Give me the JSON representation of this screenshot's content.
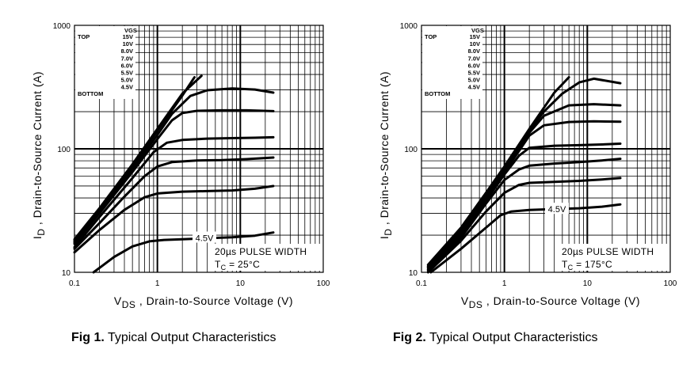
{
  "charts": [
    {
      "caption_num": "Fig 1.",
      "caption_text": "Typical Output Characteristics",
      "note_line1": "20µs PULSE WIDTH",
      "note_t": "T",
      "note_sub": "C",
      "note_rest": " = 25°C",
      "curve_label": "4.5V"
    },
    {
      "caption_num": "Fig 2.",
      "caption_text": "Typical Output Characteristics",
      "note_line1": "20µs PULSE WIDTH",
      "note_t": "T",
      "note_sub": "C",
      "note_rest": " = 175°C",
      "curve_label": "4.5V"
    }
  ],
  "chart_data": [
    {
      "type": "line",
      "title": "Typical Output Characteristics",
      "xlabel": "V DS , Drain-to-Source Voltage (V)",
      "ylabel": "I D , Drain-to-Source Current (A)",
      "xscale": "log",
      "yscale": "log",
      "xlim": [
        0.1,
        100
      ],
      "ylim": [
        10,
        1000
      ],
      "xticks": [
        "0.1",
        "1",
        "10",
        "100"
      ],
      "yticks": [
        "10",
        "100",
        "1000"
      ],
      "grid": true,
      "legend_title": "VGS",
      "legend_top": "TOP",
      "legend_bottom": "BOTTOM",
      "legend_entries": [
        "15V",
        "10V",
        "8.0V",
        "7.0V",
        "6.0V",
        "5.5V",
        "5.0V",
        "4.5V"
      ],
      "annotation": "20µs PULSE WIDTH",
      "condition": "TC = 25°C",
      "series": [
        {
          "vgs": "4.5V",
          "x": [
            0.17,
            0.3,
            0.5,
            0.8,
            1.2,
            2,
            4,
            8,
            15,
            25
          ],
          "y": [
            10.0,
            13.3,
            16.2,
            17.8,
            18.3,
            18.5,
            18.9,
            19.2,
            19.8,
            21
          ]
        },
        {
          "vgs": "5.0V",
          "x": [
            0.1,
            0.2,
            0.4,
            0.7,
            1.0,
            2,
            4,
            8,
            15,
            25
          ],
          "y": [
            14.5,
            22,
            32,
            40.5,
            43.5,
            45,
            45.5,
            46,
            47.5,
            50
          ]
        },
        {
          "vgs": "5.5V",
          "x": [
            0.1,
            0.2,
            0.4,
            0.7,
            1.0,
            1.5,
            3,
            6,
            12,
            25
          ],
          "y": [
            15.5,
            25,
            41,
            60,
            72,
            78,
            80.5,
            81,
            82.5,
            85
          ]
        },
        {
          "vgs": "6.0V",
          "x": [
            0.1,
            0.2,
            0.5,
            0.9,
            1.3,
            2,
            4,
            8,
            15,
            25
          ],
          "y": [
            16,
            28,
            58,
            94,
            112,
            118,
            121,
            122,
            123,
            124
          ]
        },
        {
          "vgs": "7.0V",
          "x": [
            0.1,
            0.2,
            0.5,
            1.0,
            1.5,
            2,
            3,
            6,
            12,
            25
          ],
          "y": [
            17,
            30,
            65,
            120,
            170,
            195,
            203,
            205,
            205,
            202
          ]
        },
        {
          "vgs": "8.0V",
          "x": [
            0.1,
            0.2,
            0.5,
            1.0,
            1.5,
            2.5,
            4,
            8,
            15,
            25
          ],
          "y": [
            17.5,
            31,
            68,
            130,
            192,
            268,
            298,
            308,
            302,
            285
          ]
        },
        {
          "vgs": "10V",
          "x": [
            0.1,
            0.2,
            0.5,
            1.0,
            2.0,
            2.8
          ],
          "y": [
            18,
            32,
            72,
            140,
            270,
            380
          ]
        },
        {
          "vgs": "15V",
          "x": [
            0.1,
            0.2,
            0.5,
            1.0,
            2.0,
            3.4
          ],
          "y": [
            18.5,
            33,
            75,
            145,
            280,
            390
          ]
        }
      ]
    },
    {
      "type": "line",
      "title": "Typical Output Characteristics",
      "xlabel": "V DS , Drain-to-Source Voltage (V)",
      "ylabel": "I D , Drain-to-Source Current (A)",
      "xscale": "log",
      "yscale": "log",
      "xlim": [
        0.1,
        100
      ],
      "ylim": [
        10,
        1000
      ],
      "xticks": [
        "0.1",
        "1",
        "10",
        "100"
      ],
      "yticks": [
        "10",
        "100",
        "1000"
      ],
      "grid": true,
      "legend_title": "VGS",
      "legend_top": "TOP",
      "legend_bottom": "BOTTOM",
      "legend_entries": [
        "15V",
        "10V",
        "8.0V",
        "7.0V",
        "6.0V",
        "5.5V",
        "5.0V",
        "4.5V"
      ],
      "annotation": "20µs PULSE WIDTH",
      "condition": "TC = 175°C",
      "series": [
        {
          "vgs": "4.5V",
          "x": [
            0.13,
            0.3,
            0.6,
            0.9,
            1.2,
            2,
            4,
            8,
            15,
            25
          ],
          "y": [
            10.0,
            15.5,
            23,
            29,
            31,
            32,
            32.5,
            33,
            34,
            35.5
          ]
        },
        {
          "vgs": "5.0V",
          "x": [
            0.12,
            0.3,
            0.6,
            1.0,
            1.5,
            2,
            4,
            8,
            15,
            25
          ],
          "y": [
            10.0,
            18,
            31,
            44,
            51,
            53,
            54,
            55,
            56.5,
            58
          ]
        },
        {
          "vgs": "5.5V",
          "x": [
            0.12,
            0.3,
            0.6,
            1.0,
            1.5,
            2,
            4,
            8,
            15,
            25
          ],
          "y": [
            10.3,
            19,
            36,
            56,
            68,
            73,
            76,
            78,
            80.5,
            83
          ]
        },
        {
          "vgs": "6.0V",
          "x": [
            0.12,
            0.3,
            0.6,
            1.0,
            1.5,
            2,
            4,
            8,
            15,
            25
          ],
          "y": [
            10.5,
            20,
            38,
            62,
            88,
            102,
            106,
            107,
            108.5,
            110
          ]
        },
        {
          "vgs": "7.0V",
          "x": [
            0.12,
            0.3,
            0.6,
            1.0,
            1.5,
            2,
            3,
            6,
            12,
            25
          ],
          "y": [
            10.8,
            21,
            40,
            65,
            96,
            128,
            155,
            165,
            167,
            166
          ]
        },
        {
          "vgs": "8.0V",
          "x": [
            0.12,
            0.3,
            0.6,
            1.0,
            1.5,
            2,
            3,
            6,
            12,
            25
          ],
          "y": [
            11,
            22,
            42,
            68,
            100,
            135,
            185,
            225,
            230,
            225
          ]
        },
        {
          "vgs": "10V",
          "x": [
            0.12,
            0.3,
            0.6,
            1.0,
            1.5,
            2,
            3,
            5,
            8,
            12,
            25
          ],
          "y": [
            11.2,
            22.5,
            43,
            70,
            103,
            140,
            200,
            280,
            345,
            370,
            340
          ]
        },
        {
          "vgs": "15V",
          "x": [
            0.12,
            0.3,
            0.6,
            1.0,
            2.0,
            4.0,
            6.0
          ],
          "y": [
            11.5,
            23,
            44,
            72,
            145,
            285,
            380
          ]
        }
      ]
    }
  ]
}
